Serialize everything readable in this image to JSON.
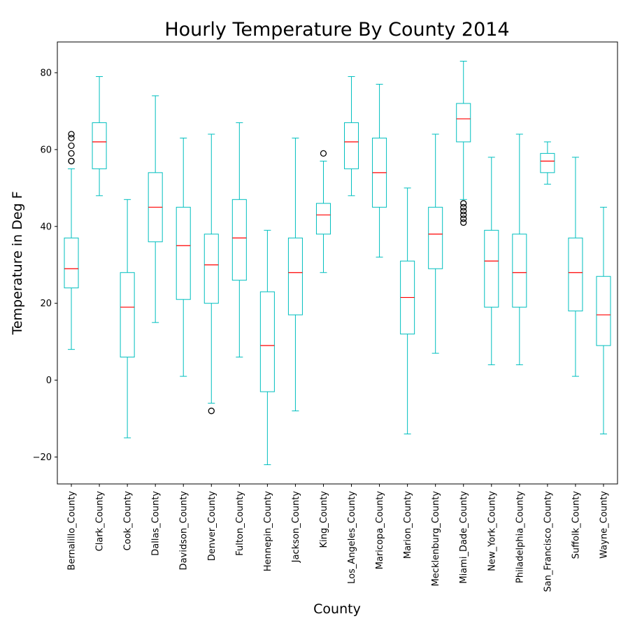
{
  "chart_data": {
    "type": "box",
    "title": "Hourly Temperature By County 2014",
    "xlabel": "County",
    "ylabel": "Temperature in Deg F",
    "ylim": [
      -27,
      88
    ],
    "yticks": [
      -20,
      0,
      20,
      40,
      60,
      80
    ],
    "grid": false,
    "colors": {
      "box": "#00bfbf",
      "median": "#ff0000",
      "outlier": "#000000"
    },
    "series": [
      {
        "category": "Bernalillo_County",
        "whisker_low": 8,
        "q1": 24,
        "median": 29,
        "q3": 37,
        "whisker_high": 55,
        "outliers": [
          57,
          57,
          59,
          61,
          63,
          64
        ]
      },
      {
        "category": "Clark_County",
        "whisker_low": 48,
        "q1": 55,
        "median": 62,
        "q3": 67,
        "whisker_high": 79,
        "outliers": []
      },
      {
        "category": "Cook_County",
        "whisker_low": -15,
        "q1": 6,
        "median": 19,
        "q3": 28,
        "whisker_high": 47,
        "outliers": []
      },
      {
        "category": "Dallas_County",
        "whisker_low": 15,
        "q1": 36,
        "median": 45,
        "q3": 54,
        "whisker_high": 74,
        "outliers": []
      },
      {
        "category": "Davidson_County",
        "whisker_low": 1,
        "q1": 21,
        "median": 35,
        "q3": 45,
        "whisker_high": 63,
        "outliers": []
      },
      {
        "category": "Denver_County",
        "whisker_low": -6,
        "q1": 20,
        "median": 30,
        "q3": 38,
        "whisker_high": 64,
        "outliers": [
          -8
        ]
      },
      {
        "category": "Fulton_County",
        "whisker_low": 6,
        "q1": 26,
        "median": 37,
        "q3": 47,
        "whisker_high": 67,
        "outliers": []
      },
      {
        "category": "Hennepin_County",
        "whisker_low": -22,
        "q1": -3,
        "median": 9,
        "q3": 23,
        "whisker_high": 39,
        "outliers": []
      },
      {
        "category": "Jackson_County",
        "whisker_low": -8,
        "q1": 17,
        "median": 28,
        "q3": 37,
        "whisker_high": 63,
        "outliers": []
      },
      {
        "category": "King_County",
        "whisker_low": 28,
        "q1": 38,
        "median": 43,
        "q3": 46,
        "whisker_high": 57,
        "outliers": [
          59
        ]
      },
      {
        "category": "Los_Angeles_County",
        "whisker_low": 48,
        "q1": 55,
        "median": 62,
        "q3": 67,
        "whisker_high": 79,
        "outliers": []
      },
      {
        "category": "Maricopa_County",
        "whisker_low": 32,
        "q1": 45,
        "median": 54,
        "q3": 63,
        "whisker_high": 77,
        "outliers": []
      },
      {
        "category": "Marion_County",
        "whisker_low": -14,
        "q1": 12,
        "median": 21.5,
        "q3": 31,
        "whisker_high": 50,
        "outliers": []
      },
      {
        "category": "Mecklenburg_County",
        "whisker_low": 7,
        "q1": 29,
        "median": 38,
        "q3": 45,
        "whisker_high": 64,
        "outliers": []
      },
      {
        "category": "Miami_Dade_County",
        "whisker_low": 47,
        "q1": 62,
        "median": 68,
        "q3": 72,
        "whisker_high": 83,
        "outliers": [
          41,
          42,
          43,
          44,
          45,
          46
        ]
      },
      {
        "category": "New_York_County",
        "whisker_low": 4,
        "q1": 19,
        "median": 31,
        "q3": 39,
        "whisker_high": 58,
        "outliers": []
      },
      {
        "category": "Philadelphia_County",
        "whisker_low": 4,
        "q1": 19,
        "median": 28,
        "q3": 38,
        "whisker_high": 64,
        "outliers": []
      },
      {
        "category": "San_Francisco_County",
        "whisker_low": 51,
        "q1": 54,
        "median": 57,
        "q3": 59,
        "whisker_high": 62,
        "outliers": []
      },
      {
        "category": "Suffolk_County",
        "whisker_low": 1,
        "q1": 18,
        "median": 28,
        "q3": 37,
        "whisker_high": 58,
        "outliers": []
      },
      {
        "category": "Wayne_County",
        "whisker_low": -14,
        "q1": 9,
        "median": 17,
        "q3": 27,
        "whisker_high": 45,
        "outliers": []
      }
    ]
  }
}
